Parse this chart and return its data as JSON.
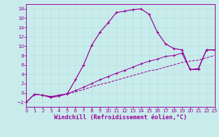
{
  "background_color": "#c8ecec",
  "line_color": "#990099",
  "xlim": [
    0,
    23
  ],
  "ylim": [
    -3,
    19
  ],
  "xticks": [
    0,
    1,
    2,
    3,
    4,
    5,
    6,
    7,
    8,
    9,
    10,
    11,
    12,
    13,
    14,
    15,
    16,
    17,
    18,
    19,
    20,
    21,
    22,
    23
  ],
  "yticks": [
    -2,
    0,
    2,
    4,
    6,
    8,
    10,
    12,
    14,
    16,
    18
  ],
  "curve1_x": [
    0,
    1,
    2,
    3,
    4,
    5,
    6,
    7,
    8,
    9,
    10,
    11,
    12,
    13,
    14,
    15,
    16,
    17,
    18,
    19,
    20,
    21,
    22,
    23
  ],
  "curve1_y": [
    -2,
    -0.3,
    -0.5,
    -1.0,
    -0.7,
    -0.2,
    2.8,
    6.0,
    10.2,
    13.0,
    15.0,
    17.2,
    17.5,
    17.8,
    18.0,
    16.8,
    13.0,
    10.5,
    9.5,
    9.2,
    5.0,
    5.0,
    9.2,
    9.2
  ],
  "curve2_x": [
    0,
    1,
    2,
    3,
    4,
    5,
    6,
    7,
    8,
    9,
    10,
    11,
    12,
    13,
    14,
    15,
    16,
    17,
    18,
    19,
    20,
    21,
    22,
    23
  ],
  "curve2_y": [
    -2,
    -0.3,
    -0.5,
    -0.8,
    -0.5,
    -0.2,
    0.5,
    1.2,
    2.0,
    2.8,
    3.5,
    4.2,
    4.8,
    5.5,
    6.2,
    6.8,
    7.2,
    7.8,
    8.0,
    8.5,
    5.0,
    5.2,
    9.2,
    9.2
  ],
  "curve3_x": [
    0,
    1,
    2,
    3,
    4,
    5,
    6,
    7,
    8,
    9,
    10,
    11,
    12,
    13,
    14,
    15,
    16,
    17,
    18,
    19,
    20,
    21,
    22,
    23
  ],
  "curve3_y": [
    -2,
    -0.3,
    -0.5,
    -0.8,
    -0.5,
    -0.2,
    0.2,
    0.7,
    1.3,
    1.8,
    2.2,
    2.7,
    3.2,
    3.7,
    4.2,
    4.7,
    5.0,
    5.5,
    6.0,
    6.5,
    6.8,
    7.0,
    7.5,
    8.0
  ],
  "xlabel": "Windchill (Refroidissement éolien,°C)",
  "tick_fontsize": 5.2,
  "xlabel_fontsize": 6.2,
  "grid_color": "#b8dede"
}
